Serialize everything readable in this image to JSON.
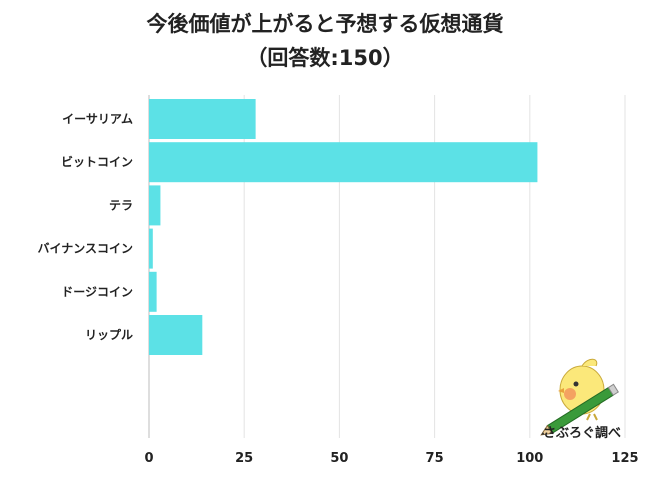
{
  "title_line1": "今後価値が上がると予想する仮想通貨",
  "title_line2": "（回答数:150）",
  "chart_data": {
    "type": "bar",
    "orientation": "horizontal",
    "categories": [
      "イーサリアム",
      "ビットコイン",
      "テラ",
      "バイナンスコイン",
      "ドージコイン",
      "リップル"
    ],
    "values": [
      28,
      102,
      3,
      1,
      2,
      14
    ],
    "xlim": [
      0,
      125
    ],
    "xticks": [
      0,
      25,
      50,
      75,
      100,
      125
    ],
    "grid": "vertical",
    "bar_color": "#5ce1e6"
  },
  "logo": {
    "text": "さぶろぐ調べ",
    "icon": "bird-with-pencil-icon"
  }
}
